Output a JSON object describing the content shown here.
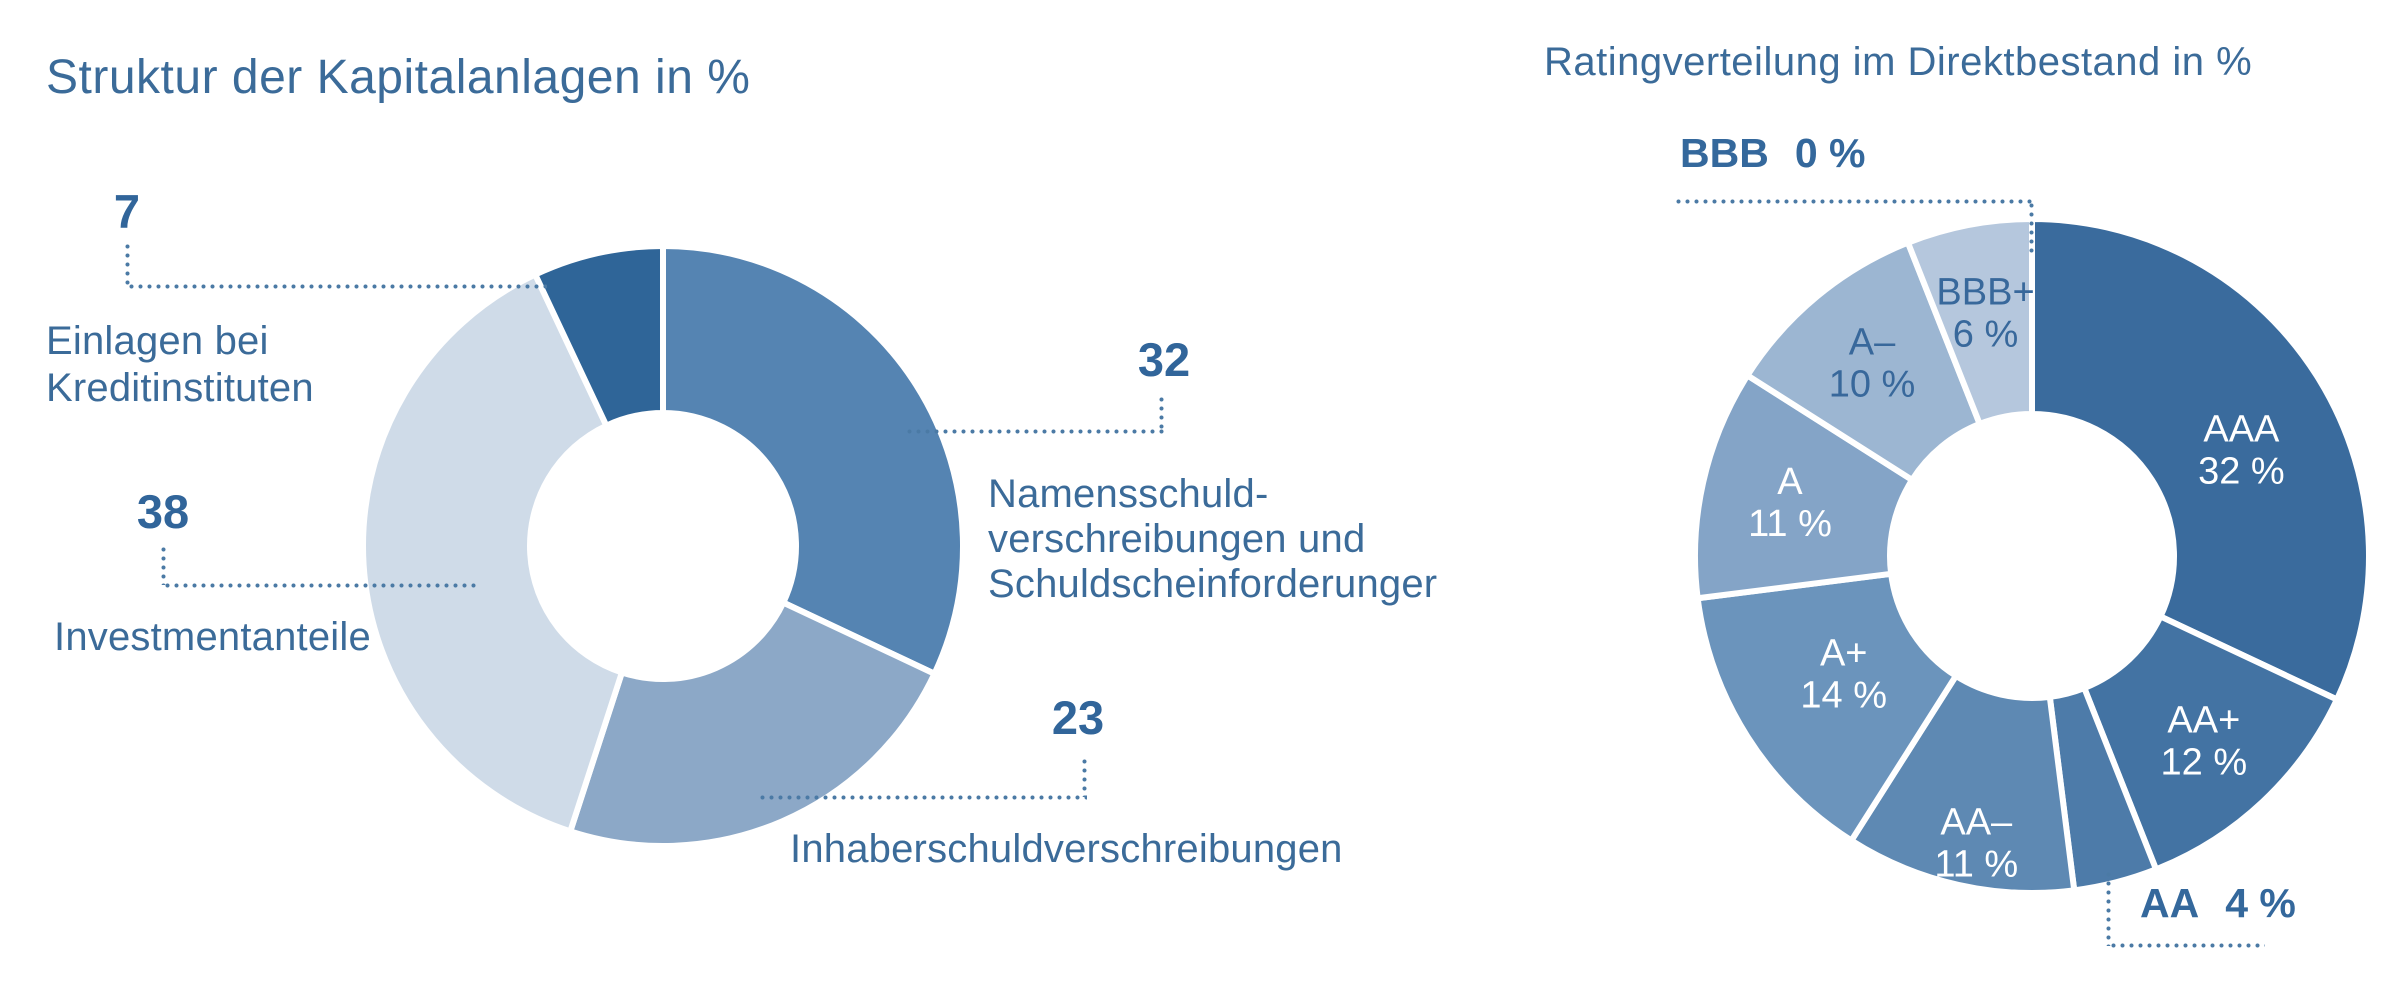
{
  "page": {
    "background": "#ffffff"
  },
  "colors": {
    "title_text": "#3b6b99",
    "label_text": "#3b6b99",
    "number_text": "#31659a",
    "leader_dots": "#4b7aa5",
    "segment_separator": "#ffffff",
    "inside_label_light": "#ffffff",
    "inside_label_dark": "#38689b"
  },
  "chart_data": [
    {
      "type": "donut",
      "title": "Struktur der Kapitalanlagen in %",
      "unit": "%",
      "start_angle_deg": 0,
      "direction": "clockwise",
      "legend_position": "outside-leader-lines",
      "segments": [
        {
          "label": "Namensschuld-\nverschreibungen und\nSchuldscheinforderunger",
          "value": 32,
          "color": "#5584b2"
        },
        {
          "label": "Inhaberschuldverschreibungen",
          "value": 23,
          "color": "#8ca8c7"
        },
        {
          "label": "Investmentanteile",
          "value": 38,
          "color": "#cfdbe8"
        },
        {
          "label": "Einlagen bei\nKreditinstituten",
          "value": 7,
          "color": "#2f6598"
        }
      ]
    },
    {
      "type": "donut",
      "title": "Ratingverteilung im Direktbestand in %",
      "unit": "%",
      "start_angle_deg": 0,
      "direction": "clockwise",
      "legend_position": "inside-segments",
      "segments": [
        {
          "label": "AAA",
          "value": 32,
          "value_label": "32 %",
          "color": "#3a6b9d",
          "text_color": "#ffffff",
          "label_placement": "inside"
        },
        {
          "label": "AA+",
          "value": 12,
          "value_label": "12 %",
          "color": "#4373a3",
          "text_color": "#ffffff",
          "label_placement": "inside"
        },
        {
          "label": "AA",
          "value": 4,
          "value_label": "4 %",
          "color": "#4d7ba9",
          "label_placement": "outside"
        },
        {
          "label": "AA–",
          "value": 11,
          "value_label": "11 %",
          "color": "#5e89b3",
          "text_color": "#ffffff",
          "label_placement": "inside"
        },
        {
          "label": "A+",
          "value": 14,
          "value_label": "14 %",
          "color": "#6b94bc",
          "text_color": "#ffffff",
          "label_placement": "inside"
        },
        {
          "label": "A",
          "value": 11,
          "value_label": "11 %",
          "color": "#84a4c7",
          "text_color": "#ffffff",
          "label_placement": "inside"
        },
        {
          "label": "A–",
          "value": 10,
          "value_label": "10 %",
          "color": "#9cb6d2",
          "text_color": "#38689b",
          "label_placement": "inside"
        },
        {
          "label": "BBB+",
          "value": 6,
          "value_label": "6 %",
          "color": "#b5c7dd",
          "text_color": "#38689b",
          "label_placement": "inside"
        },
        {
          "label": "BBB",
          "value": 0,
          "value_label": "0 %",
          "color": "#b5c7dd",
          "label_placement": "outside"
        }
      ]
    }
  ]
}
